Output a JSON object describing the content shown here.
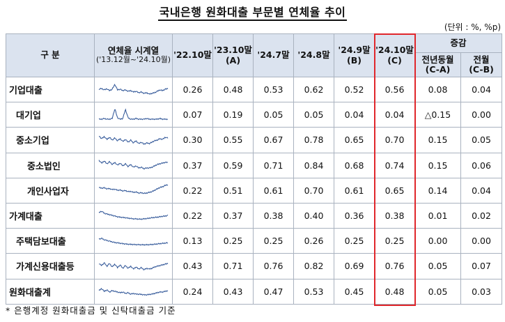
{
  "title": "국내은행 원화대출 부문별 연체율 추이",
  "unit": "(단위 : %, %p)",
  "header": {
    "category": "구  분",
    "series_title": "연체율 시계열",
    "series_range": "('13.12월~'24.10월)",
    "cols": [
      {
        "top": "'22.10말",
        "bottom": ""
      },
      {
        "top": "'23.10말",
        "bottom": "(A)"
      },
      {
        "top": "'24.7말",
        "bottom": ""
      },
      {
        "top": "'24.8말",
        "bottom": ""
      },
      {
        "top": "'24.9말",
        "bottom": "(B)"
      },
      {
        "top": "'24.10말",
        "bottom": "(C)"
      }
    ],
    "change_group": "증감",
    "change_cols": [
      {
        "top": "전년동월",
        "bottom": "(C-A)"
      },
      {
        "top": "전월",
        "bottom": "(C-B)"
      }
    ]
  },
  "rows": [
    {
      "name": "기업대출",
      "level": 0,
      "values": [
        "0.26",
        "0.48",
        "0.53",
        "0.62",
        "0.52",
        "0.56"
      ],
      "changes": [
        "0.08",
        "0.04"
      ]
    },
    {
      "name": "대기업",
      "level": 1,
      "values": [
        "0.07",
        "0.19",
        "0.05",
        "0.05",
        "0.04",
        "0.04"
      ],
      "changes": [
        "△0.15",
        "0.00"
      ]
    },
    {
      "name": "중소기업",
      "level": 1,
      "values": [
        "0.30",
        "0.55",
        "0.67",
        "0.78",
        "0.65",
        "0.70"
      ],
      "changes": [
        "0.15",
        "0.05"
      ]
    },
    {
      "name": "중소법인",
      "level": 2,
      "values": [
        "0.37",
        "0.59",
        "0.71",
        "0.84",
        "0.68",
        "0.74"
      ],
      "changes": [
        "0.15",
        "0.06"
      ]
    },
    {
      "name": "개인사업자",
      "level": 2,
      "values": [
        "0.22",
        "0.51",
        "0.61",
        "0.70",
        "0.61",
        "0.65"
      ],
      "changes": [
        "0.14",
        "0.04"
      ]
    },
    {
      "name": "가계대출",
      "level": 0,
      "values": [
        "0.22",
        "0.37",
        "0.38",
        "0.40",
        "0.36",
        "0.38"
      ],
      "changes": [
        "0.01",
        "0.02"
      ]
    },
    {
      "name": "주택담보대출",
      "level": 1,
      "values": [
        "0.13",
        "0.25",
        "0.25",
        "0.26",
        "0.25",
        "0.25"
      ],
      "changes": [
        "0.00",
        "0.00"
      ]
    },
    {
      "name": "가계신용대출등",
      "level": 1,
      "values": [
        "0.43",
        "0.71",
        "0.76",
        "0.82",
        "0.69",
        "0.76"
      ],
      "changes": [
        "0.05",
        "0.07"
      ]
    },
    {
      "name": "원화대출계",
      "level": 0,
      "values": [
        "0.24",
        "0.43",
        "0.47",
        "0.53",
        "0.45",
        "0.48"
      ],
      "changes": [
        "0.05",
        "0.03"
      ]
    }
  ],
  "footnote": "* 은행계정 원화대출금 및 신탁대출금 기준",
  "colors": {
    "header_bg": "#dbe3ef",
    "border": "#a9b2bf",
    "highlight": "#e0262b",
    "spark": "#2f5597"
  }
}
